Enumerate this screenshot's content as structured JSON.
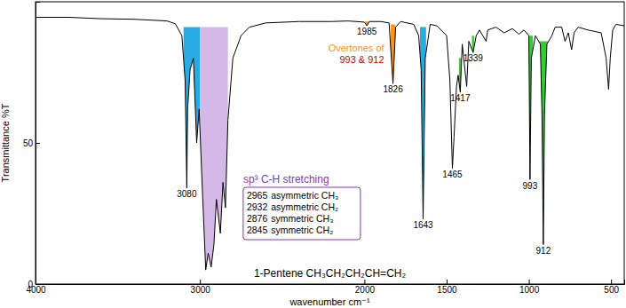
{
  "chart_data": {
    "type": "line",
    "title": "1-Pentene  CH₃CH₂CH₂CH=CH₂",
    "x_label": "wavenumber cm⁻¹",
    "y_label": "Transmittance %T",
    "color": "#000000",
    "x": [
      4000,
      3800,
      3600,
      3400,
      3200,
      3150,
      3110,
      3090,
      3080,
      3075,
      3060,
      3040,
      3020,
      3005,
      2990,
      2965,
      2950,
      2932,
      2915,
      2900,
      2876,
      2860,
      2845,
      2830,
      2800,
      2750,
      2700,
      2600,
      2400,
      2200,
      2100,
      2000,
      1985,
      1970,
      1900,
      1850,
      1826,
      1810,
      1780,
      1700,
      1670,
      1655,
      1643,
      1630,
      1600,
      1560,
      1500,
      1480,
      1465,
      1455,
      1440,
      1430,
      1417,
      1405,
      1378,
      1365,
      1339,
      1320,
      1300,
      1260,
      1250,
      1200,
      1150,
      1100,
      1060,
      1030,
      1000,
      993,
      985,
      960,
      930,
      920,
      912,
      905,
      890,
      860,
      840,
      800,
      780,
      760,
      740,
      725,
      700,
      640,
      560,
      530,
      515,
      505,
      490,
      470,
      420
    ],
    "values": [
      94.5,
      94.5,
      94,
      93.8,
      93.2,
      92.2,
      88,
      72,
      34,
      62,
      76,
      80,
      50,
      62,
      40,
      5,
      11,
      6,
      14,
      30,
      18,
      36,
      27,
      58,
      80,
      88,
      91,
      92.5,
      93,
      93,
      93.2,
      92.8,
      91.5,
      93,
      93,
      92.5,
      71,
      91,
      93,
      92,
      88,
      76,
      23,
      80,
      92,
      91.5,
      88,
      72,
      41,
      52,
      70,
      74,
      68,
      85,
      70,
      86,
      82,
      88,
      90,
      86,
      90,
      91,
      89,
      90.5,
      88.5,
      90,
      88,
      37,
      80,
      88,
      85,
      60,
      14,
      60,
      85,
      88,
      91,
      91,
      86,
      89,
      83,
      89,
      91,
      90,
      89,
      80,
      69,
      80,
      90,
      92,
      91.5
    ],
    "xlim": [
      4000,
      420
    ],
    "ylim": [
      0,
      100
    ],
    "xticks": [
      4000,
      3000,
      2000,
      1500,
      1000,
      500
    ],
    "yticks": [
      0,
      50
    ],
    "highlights": [
      {
        "range": [
          3100,
          3000
        ],
        "top": 91,
        "color": "#29abe2"
      },
      {
        "range": [
          3000,
          2830
        ],
        "top": 91,
        "color": "#d4b8e8"
      },
      {
        "range": [
          1995,
          1975
        ],
        "top": 93,
        "color": "#f7941d"
      },
      {
        "range": [
          1840,
          1812
        ],
        "top": 92,
        "color": "#f7941d"
      },
      {
        "range": [
          1662,
          1625
        ],
        "top": 91,
        "color": "#29abe2"
      },
      {
        "range": [
          1425,
          1410
        ],
        "top": 80,
        "color": "#33cc33"
      },
      {
        "range": [
          1346,
          1332
        ],
        "top": 88,
        "color": "#33cc33"
      },
      {
        "range": [
          1012,
          975
        ],
        "top": 88,
        "color": "#33cc33"
      },
      {
        "range": [
          940,
          885
        ],
        "top": 86,
        "color": "#33cc33"
      }
    ],
    "peaks": {
      "x": [
        3080,
        1985,
        1826,
        1643,
        1465,
        1417,
        1339,
        993,
        912
      ],
      "y": [
        34,
        91.5,
        71,
        23,
        41,
        68,
        82,
        37,
        14
      ]
    },
    "overtone_note": {
      "lines": [
        {
          "text": "Overtones of",
          "color": "#f7941d"
        },
        {
          "text": "993 & 912",
          "color": "#cc0000"
        }
      ]
    },
    "ch_box": {
      "title": "sp³ C-H stretching",
      "color": "#8b2fc9",
      "entries": [
        {
          "x": 2965,
          "label": "asymmetric CH₃"
        },
        {
          "x": 2932,
          "label": "asymmetric CH₂"
        },
        {
          "x": 2876,
          "label": "symmetric CH₃"
        },
        {
          "x": 2845,
          "label": "symmetric CH₂"
        }
      ]
    }
  }
}
